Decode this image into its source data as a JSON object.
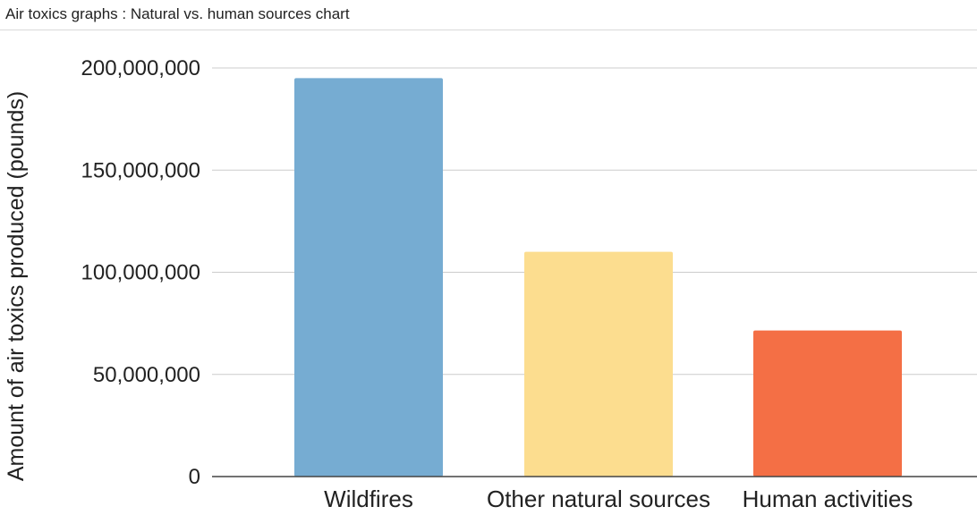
{
  "header": {
    "title": "Air toxics graphs : Natural vs. human sources chart"
  },
  "chart_data": {
    "type": "bar",
    "title": "",
    "xlabel": "",
    "ylabel": "Amount of air toxics produced (pounds)",
    "categories": [
      "Wildfires",
      "Other natural sources",
      "Human activities"
    ],
    "values": [
      195000000,
      110000000,
      71500000
    ],
    "colors": [
      "#76acd2",
      "#fcdd8f",
      "#f46f45"
    ],
    "ylim": [
      0,
      200000000
    ],
    "yticks": [
      0,
      50000000,
      100000000,
      150000000,
      200000000
    ],
    "ytick_labels": [
      "0",
      "50,000,000",
      "100,000,000",
      "150,000,000",
      "200,000,000"
    ],
    "grid": true,
    "legend": "none"
  }
}
